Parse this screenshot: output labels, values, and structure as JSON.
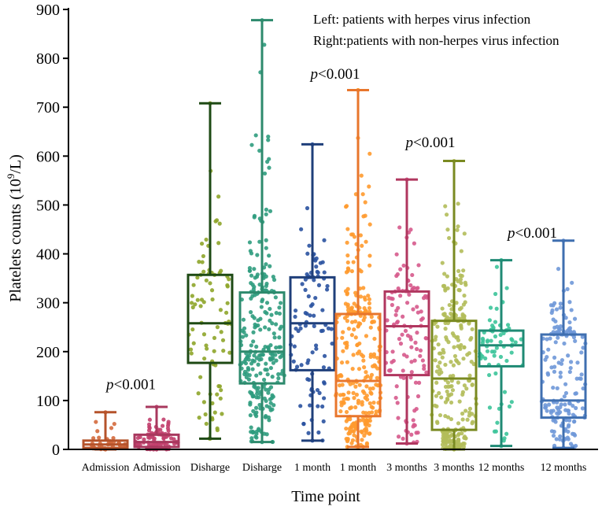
{
  "chart_data": {
    "type": "box",
    "title": "",
    "xlabel": "Time point",
    "ylabel_main": "Platelets counts (10",
    "ylabel_sup": "9",
    "ylabel_tail": "/L)",
    "ylim": [
      0,
      900
    ],
    "yticks": [
      0,
      100,
      200,
      300,
      400,
      500,
      600,
      700,
      800,
      900
    ],
    "legend_lines": [
      "Left: patients with herpes virus infection",
      "Right:patients with non-herpes virus infection"
    ],
    "categories": [
      "Admission",
      "Admission",
      "Disharge",
      "Disharge",
      "1 month",
      "1 month",
      "3 months",
      "3 months",
      "12 months",
      "12 months"
    ],
    "boxes": [
      {
        "label": "Admission",
        "group": "herpes",
        "color": "#b5532b",
        "min": 0,
        "q1": 3,
        "median": 10,
        "q3": 18,
        "max": 76,
        "n": 40
      },
      {
        "label": "Admission",
        "group": "non-herpes",
        "color": "#a8385e",
        "min": 0,
        "q1": 5,
        "median": 15,
        "q3": 30,
        "max": 87,
        "n": 110
      },
      {
        "label": "Disharge",
        "group": "herpes",
        "color": "#1e4a14",
        "min": 22,
        "q1": 177,
        "median": 258,
        "q3": 357,
        "max": 708,
        "n": 85
      },
      {
        "label": "Disharge",
        "group": "non-herpes",
        "color": "#2d8a6d",
        "min": 15,
        "q1": 135,
        "median": 200,
        "q3": 321,
        "max": 878,
        "n": 260
      },
      {
        "label": "1 month",
        "group": "herpes",
        "color": "#1f3f7a",
        "min": 18,
        "q1": 162,
        "median": 258,
        "q3": 352,
        "max": 624,
        "n": 95
      },
      {
        "label": "1 month",
        "group": "non-herpes",
        "color": "#e8762c",
        "min": 5,
        "q1": 68,
        "median": 140,
        "q3": 277,
        "max": 735,
        "n": 290
      },
      {
        "label": "3 months",
        "group": "herpes",
        "color": "#b0375f",
        "min": 12,
        "q1": 152,
        "median": 252,
        "q3": 323,
        "max": 552,
        "n": 120
      },
      {
        "label": "3 months",
        "group": "non-herpes",
        "color": "#7a8a21",
        "min": 0,
        "q1": 40,
        "median": 145,
        "q3": 263,
        "max": 590,
        "n": 280
      },
      {
        "label": "12 months",
        "group": "herpes",
        "color": "#1f8a74",
        "min": 7,
        "q1": 170,
        "median": 213,
        "q3": 243,
        "max": 387,
        "n": 70
      },
      {
        "label": "12 months",
        "group": "non-herpes",
        "color": "#3f6fb0",
        "min": 3,
        "q1": 65,
        "median": 100,
        "q3": 235,
        "max": 427,
        "n": 170
      }
    ],
    "point_colors": [
      "#d46a3d",
      "#c2406e",
      "#8ea52a",
      "#2f9c7e",
      "#2a52a0",
      "#ff9a2e",
      "#d65a8c",
      "#b3bd5a",
      "#3cc49a",
      "#6f98d8"
    ],
    "annotations": [
      {
        "p": "p",
        "text": "<0.001",
        "between": [
          0,
          1
        ],
        "y": 123
      },
      {
        "p": "p",
        "text": "<0.001",
        "between": [
          4,
          5
        ],
        "y": 758
      },
      {
        "p": "p",
        "text": "<0.001",
        "between": [
          6,
          7
        ],
        "y": 618
      },
      {
        "p": "p",
        "text": "<0.001",
        "between": [
          8,
          9
        ],
        "y": 433
      }
    ]
  }
}
